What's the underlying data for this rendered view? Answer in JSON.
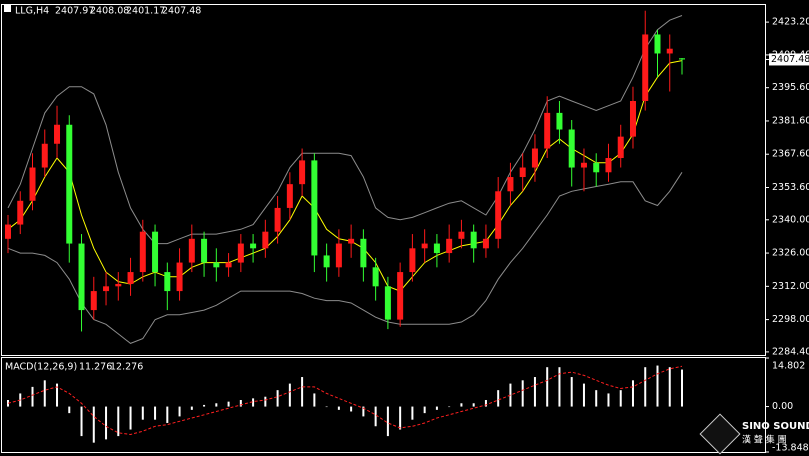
{
  "chart_data": {
    "type": "candlestick",
    "title": "LLG,H4",
    "up_color": "#ff1a1a",
    "down_color": "#33ff33",
    "band_color": "#8c8c8c",
    "ma_color": "#ffff00",
    "open": [
      2332,
      2338,
      2348,
      2362,
      2372,
      2380,
      2330,
      2302,
      2310,
      2312,
      2313,
      2318,
      2335,
      2318,
      2310,
      2322,
      2332,
      2322,
      2320,
      2322,
      2330,
      2328,
      2335,
      2345,
      2355,
      2365,
      2325,
      2320,
      2330,
      2332,
      2320,
      2312,
      2298,
      2318,
      2328,
      2330,
      2326,
      2332,
      2335,
      2328,
      2332,
      2352,
      2358,
      2362,
      2370,
      2385,
      2378,
      2362,
      2364,
      2360,
      2366,
      2375,
      2390,
      2418,
      2410,
      2407.97
    ],
    "high": [
      2342,
      2352,
      2368,
      2378,
      2388,
      2384,
      2334,
      2316,
      2318,
      2318,
      2324,
      2340,
      2338,
      2322,
      2328,
      2338,
      2335,
      2328,
      2326,
      2334,
      2334,
      2340,
      2350,
      2360,
      2370,
      2368,
      2330,
      2336,
      2338,
      2336,
      2324,
      2316,
      2322,
      2334,
      2336,
      2334,
      2338,
      2340,
      2338,
      2338,
      2358,
      2364,
      2368,
      2376,
      2392,
      2390,
      2382,
      2370,
      2368,
      2372,
      2380,
      2396,
      2428,
      2420,
      2418,
      2408.08
    ],
    "low": [
      2326,
      2334,
      2344,
      2358,
      2366,
      2322,
      2293,
      2298,
      2304,
      2306,
      2308,
      2314,
      2312,
      2302,
      2306,
      2318,
      2316,
      2314,
      2316,
      2318,
      2322,
      2324,
      2330,
      2340,
      2350,
      2318,
      2314,
      2316,
      2324,
      2314,
      2306,
      2294,
      2295,
      2314,
      2322,
      2320,
      2322,
      2328,
      2322,
      2324,
      2328,
      2346,
      2352,
      2356,
      2366,
      2372,
      2354,
      2352,
      2354,
      2356,
      2362,
      2370,
      2386,
      2400,
      2394,
      2401.17
    ],
    "close": [
      2338,
      2348,
      2362,
      2372,
      2380,
      2330,
      2302,
      2310,
      2312,
      2313,
      2318,
      2335,
      2318,
      2310,
      2322,
      2332,
      2322,
      2320,
      2322,
      2330,
      2328,
      2335,
      2345,
      2355,
      2365,
      2325,
      2320,
      2330,
      2332,
      2320,
      2312,
      2298,
      2318,
      2328,
      2330,
      2326,
      2332,
      2335,
      2328,
      2332,
      2352,
      2358,
      2362,
      2370,
      2385,
      2378,
      2362,
      2364,
      2360,
      2366,
      2375,
      2390,
      2418,
      2410,
      2412,
      2407.48
    ],
    "upper_band": [
      2345,
      2355,
      2370,
      2385,
      2392,
      2396,
      2396,
      2393,
      2380,
      2360,
      2345,
      2336,
      2330,
      2330,
      2332,
      2334,
      2334,
      2334,
      2335,
      2336,
      2338,
      2345,
      2352,
      2362,
      2368,
      2368,
      2368,
      2368,
      2367,
      2358,
      2345,
      2341,
      2340,
      2341,
      2343,
      2345,
      2347,
      2348,
      2345,
      2342,
      2350,
      2360,
      2368,
      2378,
      2390,
      2392,
      2390,
      2388,
      2386,
      2388,
      2390,
      2400,
      2412,
      2420,
      2424,
      2426
    ],
    "lower_band": [
      2328,
      2326,
      2326,
      2325,
      2322,
      2315,
      2305,
      2298,
      2296,
      2292,
      2288,
      2290,
      2298,
      2300,
      2300,
      2301,
      2302,
      2304,
      2307,
      2310,
      2310,
      2310,
      2310,
      2310,
      2309,
      2307,
      2306,
      2306,
      2305,
      2302,
      2299,
      2297,
      2296,
      2296,
      2296,
      2296,
      2296,
      2297,
      2300,
      2306,
      2315,
      2322,
      2328,
      2335,
      2342,
      2350,
      2352,
      2353,
      2354,
      2355,
      2356,
      2356,
      2348,
      2346,
      2352,
      2360
    ],
    "ma": [
      2336,
      2340,
      2348,
      2358,
      2366,
      2360,
      2342,
      2328,
      2318,
      2314,
      2313,
      2316,
      2318,
      2316,
      2316,
      2320,
      2322,
      2322,
      2322,
      2324,
      2326,
      2328,
      2333,
      2340,
      2350,
      2345,
      2336,
      2332,
      2331,
      2328,
      2322,
      2312,
      2310,
      2316,
      2322,
      2325,
      2327,
      2329,
      2330,
      2331,
      2338,
      2346,
      2352,
      2360,
      2370,
      2374,
      2370,
      2367,
      2364,
      2364,
      2368,
      2376,
      2392,
      2400,
      2406,
      2407
    ],
    "ylim": [
      2283.1,
      2430.4
    ],
    "yticks": [
      {
        "value": 2423.2,
        "label": "2423.20"
      },
      {
        "value": 2409.4,
        "label": "2409.40"
      },
      {
        "value": 2395.6,
        "label": "2395.60"
      },
      {
        "value": 2381.6,
        "label": "2381.60"
      },
      {
        "value": 2367.6,
        "label": "2367.60"
      },
      {
        "value": 2353.6,
        "label": "2353.60"
      },
      {
        "value": 2340,
        "label": "2340.00"
      },
      {
        "value": 2326,
        "label": "2326.00"
      },
      {
        "value": 2312,
        "label": "2312.00"
      },
      {
        "value": 2298,
        "label": "2298.00"
      },
      {
        "value": 2284.4,
        "label": "2284.40"
      }
    ],
    "macd": {
      "label": "MACD(12,26,9)",
      "hist_color": "#ffffff",
      "signal_color": "#ff2020",
      "histogram": [
        2,
        4,
        6,
        8,
        7,
        -2,
        -9,
        -11,
        -10,
        -9,
        -7,
        -4,
        -4,
        -5,
        -3,
        -1,
        0.5,
        1,
        1.5,
        2,
        2.5,
        3,
        5,
        7,
        9,
        4,
        0,
        -1,
        -1.5,
        -3,
        -6,
        -9,
        -7,
        -4,
        -2,
        -1,
        0,
        1,
        1,
        2,
        5,
        7,
        8,
        9,
        12,
        12,
        9,
        7,
        5,
        4,
        5,
        8,
        12,
        12.5,
        12,
        11.276
      ],
      "signal": [
        1,
        2,
        3.5,
        5,
        6,
        4,
        1,
        -3,
        -6,
        -8,
        -8.5,
        -7.5,
        -6,
        -5.5,
        -4.5,
        -3.5,
        -2.5,
        -1.5,
        -0.5,
        0.5,
        1.5,
        2,
        3,
        4.5,
        6,
        6,
        4,
        2.5,
        1,
        -0.5,
        -2.5,
        -5,
        -6.5,
        -6,
        -5,
        -3.5,
        -2.5,
        -1.5,
        -0.5,
        0.5,
        2,
        3.5,
        5,
        6.5,
        8,
        10,
        10.5,
        9.5,
        8,
        6.5,
        5.5,
        6,
        8,
        10,
        11.5,
        12.276
      ],
      "ylim": [
        -13.848,
        14.802
      ],
      "yticks": [
        14.802,
        {
          "value": 0,
          "label": "0.00"
        },
        -13.848
      ]
    },
    "logo_text": "SINO SOUND",
    "logo_subtext": "漢 聲 集 團"
  }
}
